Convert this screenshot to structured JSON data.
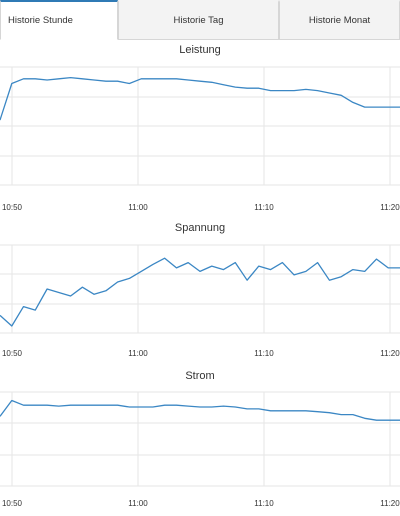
{
  "tabs": [
    {
      "label": "Historie Stunde",
      "active": true
    },
    {
      "label": "Historie Tag",
      "active": false
    },
    {
      "label": "Historie Monat",
      "active": false
    }
  ],
  "colors": {
    "line": "#3b87c4",
    "grid": "#e6e6e6",
    "active_tab_border": "#2f7ab5",
    "tab_background": "#f3f3f3"
  },
  "chart_data": [
    {
      "type": "line",
      "title": "Leistung",
      "x_ticks": [
        "10:50",
        "11:00",
        "11:10",
        "11:20"
      ],
      "series": [
        {
          "x": [
            0,
            1,
            2,
            3,
            4,
            5,
            6,
            7,
            8,
            9,
            10,
            11,
            12,
            13,
            14,
            15,
            16,
            17,
            18,
            19,
            20,
            21,
            22,
            23,
            24,
            25,
            26,
            27,
            28,
            29,
            30,
            31,
            32,
            33,
            34
          ],
          "values": [
            0.55,
            0.86,
            0.9,
            0.9,
            0.89,
            0.9,
            0.91,
            0.9,
            0.89,
            0.88,
            0.88,
            0.86,
            0.9,
            0.9,
            0.9,
            0.9,
            0.89,
            0.88,
            0.87,
            0.85,
            0.83,
            0.82,
            0.82,
            0.8,
            0.8,
            0.8,
            0.81,
            0.8,
            0.78,
            0.76,
            0.7,
            0.66,
            0.66,
            0.66,
            0.66
          ]
        }
      ]
    },
    {
      "type": "line",
      "title": "Spannung",
      "x_ticks": [
        "10:50",
        "11:00",
        "11:10",
        "11:20"
      ],
      "series": [
        {
          "x": [
            0,
            1,
            2,
            3,
            4,
            5,
            6,
            7,
            8,
            9,
            10,
            11,
            12,
            13,
            14,
            15,
            16,
            17,
            18,
            19,
            20,
            21,
            22,
            23,
            24,
            25,
            26,
            27,
            28,
            29,
            30,
            31,
            32,
            33,
            34
          ],
          "values": [
            0.2,
            0.08,
            0.3,
            0.26,
            0.5,
            0.46,
            0.42,
            0.52,
            0.44,
            0.48,
            0.58,
            0.62,
            0.7,
            0.78,
            0.85,
            0.74,
            0.8,
            0.7,
            0.76,
            0.72,
            0.8,
            0.6,
            0.76,
            0.72,
            0.8,
            0.66,
            0.7,
            0.8,
            0.6,
            0.64,
            0.72,
            0.7,
            0.84,
            0.74,
            0.74
          ]
        }
      ]
    },
    {
      "type": "line",
      "title": "Strom",
      "x_ticks": [
        "10:50",
        "11:00",
        "11:10",
        "11:20"
      ],
      "series": [
        {
          "x": [
            0,
            1,
            2,
            3,
            4,
            5,
            6,
            7,
            8,
            9,
            10,
            11,
            12,
            13,
            14,
            15,
            16,
            17,
            18,
            19,
            20,
            21,
            22,
            23,
            24,
            25,
            26,
            27,
            28,
            29,
            30,
            31,
            32,
            33,
            34
          ],
          "values": [
            0.74,
            0.91,
            0.86,
            0.86,
            0.86,
            0.85,
            0.86,
            0.86,
            0.86,
            0.86,
            0.86,
            0.84,
            0.84,
            0.84,
            0.86,
            0.86,
            0.85,
            0.84,
            0.84,
            0.85,
            0.84,
            0.82,
            0.82,
            0.8,
            0.8,
            0.8,
            0.8,
            0.79,
            0.78,
            0.76,
            0.76,
            0.72,
            0.7,
            0.7,
            0.7
          ]
        }
      ]
    }
  ]
}
